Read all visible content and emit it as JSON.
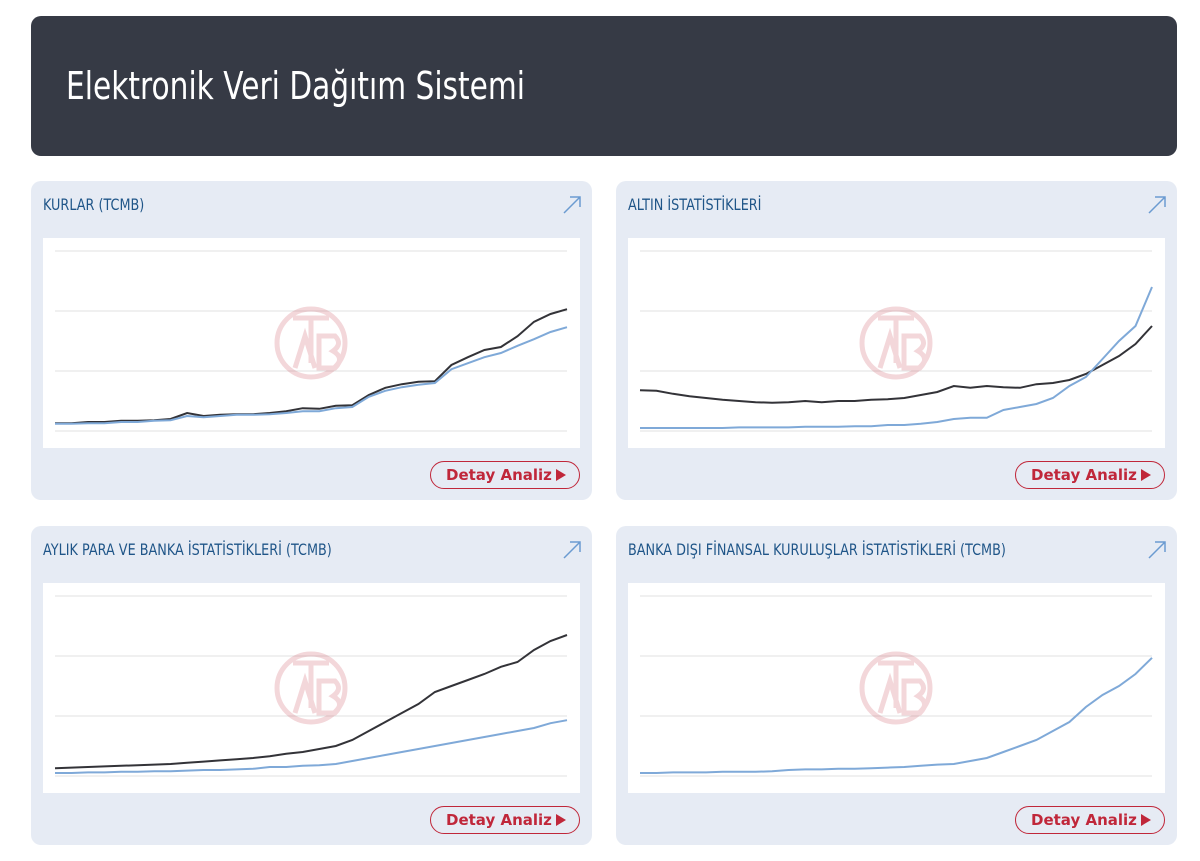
{
  "header": {
    "title": "Elektronik Veri Dağıtım Sistemi"
  },
  "button_label": "Detay Analiz",
  "chart_data": [
    {
      "type": "line",
      "title": "KURLAR (TCMB)",
      "ylim": [
        0,
        3
      ],
      "yticks": [
        0,
        1,
        2,
        3
      ],
      "grid": true,
      "series": [
        {
          "color": "#333338",
          "values": [
            0.13,
            0.13,
            0.15,
            0.15,
            0.17,
            0.17,
            0.18,
            0.2,
            0.3,
            0.25,
            0.27,
            0.28,
            0.28,
            0.3,
            0.33,
            0.38,
            0.37,
            0.42,
            0.43,
            0.6,
            0.72,
            0.78,
            0.82,
            0.83,
            1.1,
            1.23,
            1.35,
            1.4,
            1.58,
            1.82,
            1.95,
            2.03
          ]
        },
        {
          "color": "#7fa9d8",
          "values": [
            0.12,
            0.12,
            0.13,
            0.13,
            0.15,
            0.15,
            0.17,
            0.18,
            0.25,
            0.23,
            0.25,
            0.27,
            0.27,
            0.28,
            0.3,
            0.33,
            0.33,
            0.38,
            0.4,
            0.57,
            0.67,
            0.73,
            0.77,
            0.8,
            1.03,
            1.13,
            1.23,
            1.3,
            1.42,
            1.53,
            1.65,
            1.73
          ]
        }
      ]
    },
    {
      "type": "line",
      "title": "ALTIN İSTATİSTİKLERİ",
      "ylim": [
        0,
        3
      ],
      "yticks": [
        0,
        1,
        2,
        3
      ],
      "grid": true,
      "series": [
        {
          "color": "#333338",
          "values": [
            0.68,
            0.67,
            0.62,
            0.58,
            0.55,
            0.52,
            0.5,
            0.48,
            0.47,
            0.48,
            0.5,
            0.48,
            0.5,
            0.5,
            0.52,
            0.53,
            0.55,
            0.6,
            0.65,
            0.75,
            0.72,
            0.75,
            0.73,
            0.72,
            0.78,
            0.8,
            0.85,
            0.95,
            1.1,
            1.25,
            1.45,
            1.75
          ]
        },
        {
          "color": "#7fa9d8",
          "values": [
            0.05,
            0.05,
            0.05,
            0.05,
            0.05,
            0.05,
            0.06,
            0.06,
            0.06,
            0.06,
            0.07,
            0.07,
            0.07,
            0.08,
            0.08,
            0.1,
            0.1,
            0.12,
            0.15,
            0.2,
            0.22,
            0.22,
            0.35,
            0.4,
            0.45,
            0.55,
            0.75,
            0.9,
            1.2,
            1.5,
            1.75,
            2.4
          ]
        }
      ]
    },
    {
      "type": "line",
      "title": "AYLIK PARA VE BANKA İSTATİSTİKLERİ (TCMB)",
      "ylim": [
        0,
        3
      ],
      "yticks": [
        0,
        1,
        2,
        3
      ],
      "grid": true,
      "series": [
        {
          "color": "#333338",
          "values": [
            0.13,
            0.14,
            0.15,
            0.16,
            0.17,
            0.18,
            0.19,
            0.2,
            0.22,
            0.24,
            0.26,
            0.28,
            0.3,
            0.33,
            0.37,
            0.4,
            0.45,
            0.5,
            0.6,
            0.75,
            0.9,
            1.05,
            1.2,
            1.4,
            1.5,
            1.6,
            1.7,
            1.82,
            1.9,
            2.1,
            2.25,
            2.35
          ]
        },
        {
          "color": "#7fa9d8",
          "values": [
            0.05,
            0.05,
            0.06,
            0.06,
            0.07,
            0.07,
            0.08,
            0.08,
            0.09,
            0.1,
            0.1,
            0.11,
            0.12,
            0.15,
            0.15,
            0.17,
            0.18,
            0.2,
            0.25,
            0.3,
            0.35,
            0.4,
            0.45,
            0.5,
            0.55,
            0.6,
            0.65,
            0.7,
            0.75,
            0.8,
            0.88,
            0.93
          ]
        }
      ]
    },
    {
      "type": "line",
      "title": "BANKA DIŞI FİNANSAL KURULUŞLAR İSTATİSTİKLERİ (TCMB)",
      "ylim": [
        0,
        3
      ],
      "yticks": [
        0,
        1,
        2,
        3
      ],
      "grid": true,
      "series": [
        {
          "color": "#7fa9d8",
          "values": [
            0.05,
            0.05,
            0.06,
            0.06,
            0.06,
            0.07,
            0.07,
            0.07,
            0.08,
            0.1,
            0.11,
            0.11,
            0.12,
            0.12,
            0.13,
            0.14,
            0.15,
            0.17,
            0.19,
            0.2,
            0.25,
            0.3,
            0.4,
            0.5,
            0.6,
            0.75,
            0.9,
            1.15,
            1.35,
            1.5,
            1.7,
            1.97
          ]
        }
      ]
    }
  ]
}
